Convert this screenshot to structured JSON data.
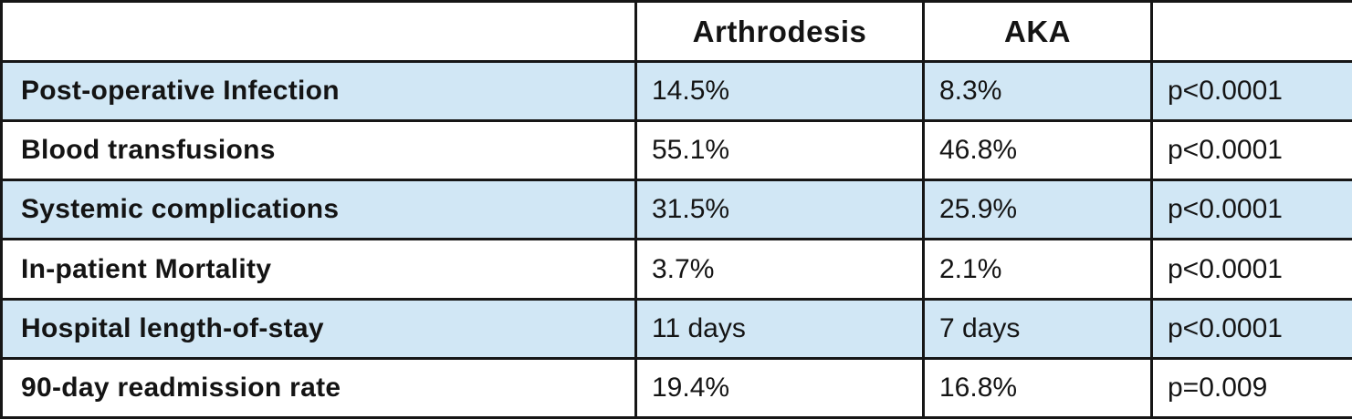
{
  "colors": {
    "row_highlight": "#d1e7f5",
    "border": "#161616",
    "text": "#141414",
    "background": "#ffffff"
  },
  "chart_data": {
    "type": "table",
    "title": "",
    "columns": [
      "",
      "Arthrodesis",
      "AKA",
      ""
    ],
    "rows": [
      {
        "label": "Post-operative Infection",
        "arthrodesis": "14.5%",
        "aka": "8.3%",
        "p_value": "p<0.0001",
        "highlighted": true
      },
      {
        "label": "Blood transfusions",
        "arthrodesis": "55.1%",
        "aka": "46.8%",
        "p_value": "p<0.0001",
        "highlighted": false
      },
      {
        "label": "Systemic complications",
        "arthrodesis": "31.5%",
        "aka": "25.9%",
        "p_value": "p<0.0001",
        "highlighted": true
      },
      {
        "label": "In-patient Mortality",
        "arthrodesis": "3.7%",
        "aka": "2.1%",
        "p_value": "p<0.0001",
        "highlighted": false
      },
      {
        "label": "Hospital length-of-stay",
        "arthrodesis": "11 days",
        "aka": "7 days",
        "p_value": "p<0.0001",
        "highlighted": true
      },
      {
        "label": "90-day readmission rate",
        "arthrodesis": "19.4%",
        "aka": "16.8%",
        "p_value": "p=0.009",
        "highlighted": false
      }
    ]
  }
}
